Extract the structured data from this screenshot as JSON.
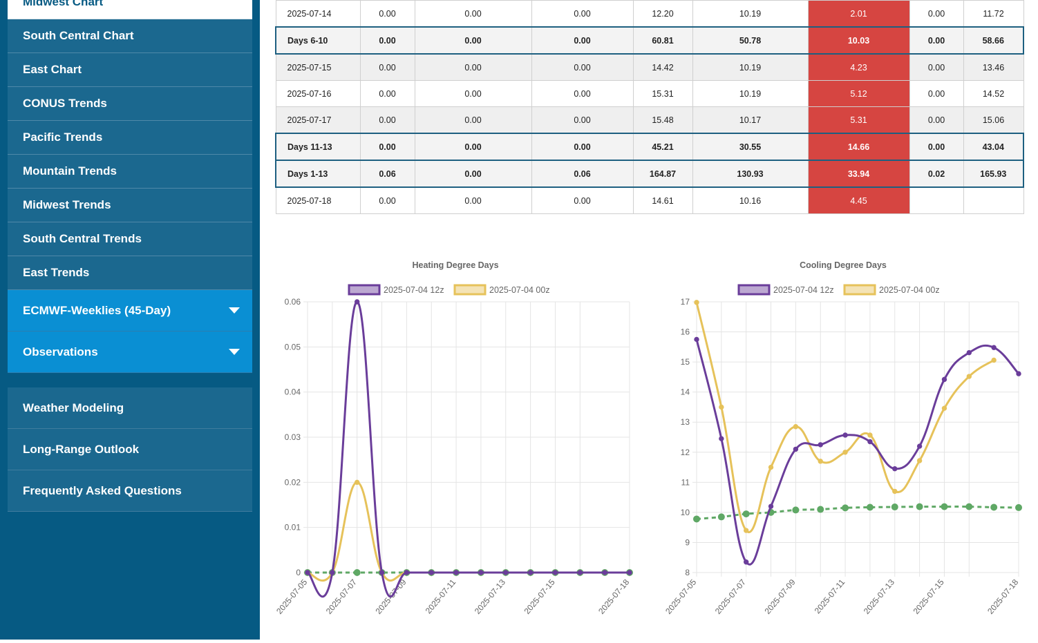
{
  "sidebar": {
    "items": [
      {
        "label": "Midwest Chart"
      },
      {
        "label": "South Central Chart"
      },
      {
        "label": "East Chart"
      },
      {
        "label": "CONUS Trends"
      },
      {
        "label": "Pacific Trends"
      },
      {
        "label": "Mountain Trends"
      },
      {
        "label": "Midwest Trends"
      },
      {
        "label": "South Central Trends"
      },
      {
        "label": "East Trends"
      }
    ],
    "dropdowns": [
      {
        "label": "ECMWF-Weeklies (45-Day)"
      },
      {
        "label": "Observations"
      }
    ],
    "lower_items": [
      {
        "label": "Weather Modeling"
      },
      {
        "label": "Long-Range Outlook"
      },
      {
        "label": "Frequently Asked Questions"
      }
    ]
  },
  "table": {
    "rows": [
      {
        "type": "data",
        "cells": [
          "2025-07-14",
          "0.00",
          "0.00",
          "0.00",
          "12.20",
          "10.19",
          "2.01",
          "0.00",
          "11.72"
        ]
      },
      {
        "type": "summary",
        "cells": [
          "Days 6-10",
          "0.00",
          "0.00",
          "0.00",
          "60.81",
          "50.78",
          "10.03",
          "0.00",
          "58.66"
        ]
      },
      {
        "type": "data",
        "cells": [
          "2025-07-15",
          "0.00",
          "0.00",
          "0.00",
          "14.42",
          "10.19",
          "4.23",
          "0.00",
          "13.46"
        ]
      },
      {
        "type": "data",
        "cells": [
          "2025-07-16",
          "0.00",
          "0.00",
          "0.00",
          "15.31",
          "10.19",
          "5.12",
          "0.00",
          "14.52"
        ]
      },
      {
        "type": "data",
        "cells": [
          "2025-07-17",
          "0.00",
          "0.00",
          "0.00",
          "15.48",
          "10.17",
          "5.31",
          "0.00",
          "15.06"
        ]
      },
      {
        "type": "summary",
        "cells": [
          "Days 11-13",
          "0.00",
          "0.00",
          "0.00",
          "45.21",
          "30.55",
          "14.66",
          "0.00",
          "43.04"
        ]
      },
      {
        "type": "summary",
        "cells": [
          "Days 1-13",
          "0.06",
          "0.00",
          "0.06",
          "164.87",
          "130.93",
          "33.94",
          "0.02",
          "165.93"
        ]
      },
      {
        "type": "data",
        "cells": [
          "2025-07-18",
          "0.00",
          "0.00",
          "0.00",
          "14.61",
          "10.16",
          "4.45",
          "",
          ""
        ]
      }
    ]
  },
  "colors": {
    "purple": "#6a3d9a",
    "gold": "#e6c25a",
    "green": "#5fa865",
    "red": "#d64541",
    "sidebar": "#065a83"
  },
  "chart_data": [
    {
      "type": "line",
      "title": "Heating Degree Days",
      "x": [
        "2025-07-05",
        "2025-07-06",
        "2025-07-07",
        "2025-07-08",
        "2025-07-09",
        "2025-07-10",
        "2025-07-11",
        "2025-07-12",
        "2025-07-13",
        "2025-07-14",
        "2025-07-15",
        "2025-07-16",
        "2025-07-17",
        "2025-07-18"
      ],
      "xticks": [
        "2025-07-05",
        "2025-07-07",
        "2025-07-09",
        "2025-07-11",
        "2025-07-13",
        "2025-07-15",
        "2025-07-18"
      ],
      "yticks": [
        "0",
        "0.01",
        "0.02",
        "0.03",
        "0.04",
        "0.05",
        "0.06"
      ],
      "ylim": [
        0,
        0.06
      ],
      "series": [
        {
          "name": "2025-07-04 12z",
          "color": "#6a3d9a",
          "values": [
            0,
            0,
            0.06,
            0,
            0,
            0,
            0,
            0,
            0,
            0,
            0,
            0,
            0,
            0
          ]
        },
        {
          "name": "2025-07-04 00z",
          "color": "#e6c25a",
          "values": [
            0,
            0,
            0.02,
            0,
            0,
            0,
            0,
            0,
            0,
            0,
            0,
            0,
            0,
            null
          ]
        },
        {
          "color": "#5fa865",
          "dashed": true,
          "values": [
            0,
            0,
            0,
            0,
            0,
            0,
            0,
            0,
            0,
            0,
            0,
            0,
            0,
            0
          ]
        }
      ]
    },
    {
      "type": "line",
      "title": "Cooling Degree Days",
      "x": [
        "2025-07-05",
        "2025-07-06",
        "2025-07-07",
        "2025-07-08",
        "2025-07-09",
        "2025-07-10",
        "2025-07-11",
        "2025-07-12",
        "2025-07-13",
        "2025-07-14",
        "2025-07-15",
        "2025-07-16",
        "2025-07-17",
        "2025-07-18"
      ],
      "xticks": [
        "2025-07-05",
        "2025-07-07",
        "2025-07-09",
        "2025-07-11",
        "2025-07-13",
        "2025-07-15",
        "2025-07-18"
      ],
      "yticks": [
        "8",
        "9",
        "10",
        "11",
        "12",
        "13",
        "14",
        "15",
        "16",
        "17"
      ],
      "ylim": [
        8,
        17
      ],
      "series": [
        {
          "name": "2025-07-04 12z",
          "color": "#6a3d9a",
          "values": [
            15.75,
            12.45,
            8.35,
            10.2,
            12.1,
            12.25,
            12.57,
            12.35,
            11.45,
            12.2,
            14.42,
            15.31,
            15.48,
            14.61
          ]
        },
        {
          "name": "2025-07-04 00z",
          "color": "#e6c25a",
          "values": [
            16.98,
            13.5,
            9.4,
            11.5,
            12.85,
            11.7,
            12.0,
            12.57,
            10.7,
            11.72,
            13.46,
            14.52,
            15.06,
            null
          ]
        },
        {
          "color": "#5fa865",
          "dashed": true,
          "values": [
            9.78,
            9.85,
            9.95,
            10.0,
            10.08,
            10.1,
            10.15,
            10.17,
            10.18,
            10.19,
            10.19,
            10.19,
            10.17,
            10.16
          ]
        }
      ]
    }
  ]
}
